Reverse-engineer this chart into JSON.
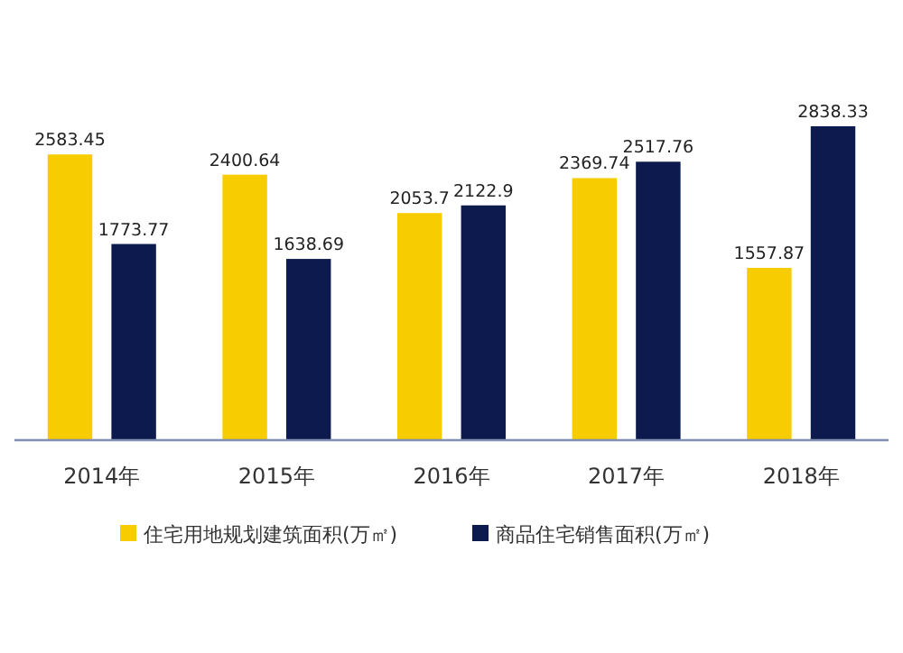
{
  "chart_data": {
    "type": "bar",
    "categories": [
      "2014年",
      "2015年",
      "2016年",
      "2017年",
      "2018年"
    ],
    "series": [
      {
        "name": "住宅用地规划建筑面积(万㎡)",
        "color": "#f7cc00",
        "values": [
          2583.45,
          2400.64,
          2053.7,
          2369.74,
          1557.87
        ]
      },
      {
        "name": "商品住宅销售面积(万㎡)",
        "color": "#0c1a4e",
        "values": [
          1773.77,
          1638.69,
          2122.9,
          2517.76,
          2838.33
        ]
      }
    ],
    "data_labels": true,
    "legend": "bottom"
  }
}
